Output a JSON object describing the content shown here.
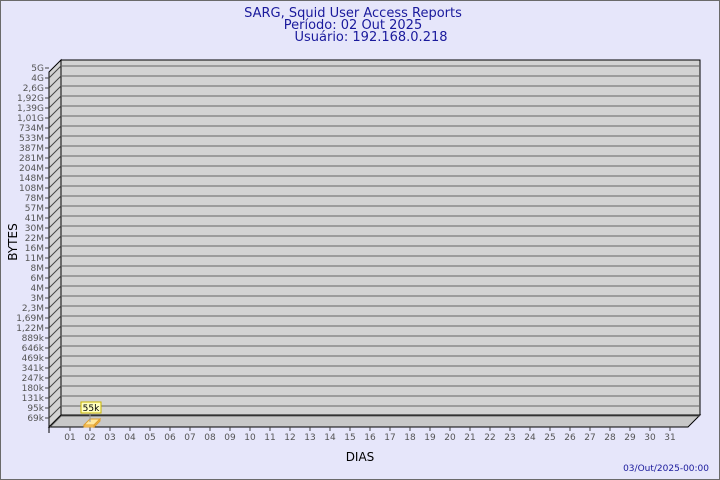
{
  "chart_data": {
    "type": "bar",
    "title": "SARG, Squid User Access Reports",
    "subtitle_lines": [
      "Período: 02 Out 2025",
      "Usuário: 192.168.0.218"
    ],
    "xlabel": "DIAS",
    "ylabel": "BYTES",
    "y_scale": "log",
    "grid": true,
    "categories": [
      "01",
      "02",
      "03",
      "04",
      "05",
      "06",
      "07",
      "08",
      "09",
      "10",
      "11",
      "12",
      "13",
      "14",
      "15",
      "16",
      "17",
      "18",
      "19",
      "20",
      "21",
      "22",
      "23",
      "24",
      "25",
      "26",
      "27",
      "28",
      "29",
      "30",
      "31"
    ],
    "values": [
      0,
      55000,
      0,
      0,
      0,
      0,
      0,
      0,
      0,
      0,
      0,
      0,
      0,
      0,
      0,
      0,
      0,
      0,
      0,
      0,
      0,
      0,
      0,
      0,
      0,
      0,
      0,
      0,
      0,
      0,
      0
    ],
    "data_labels": {
      "02": "55k"
    },
    "y_tick_labels": [
      "5G",
      "4G",
      "2,6G",
      "1,92G",
      "1,39G",
      "1,01G",
      "734M",
      "533M",
      "387M",
      "281M",
      "204M",
      "148M",
      "108M",
      "78M",
      "57M",
      "41M",
      "30M",
      "22M",
      "16M",
      "11M",
      "8M",
      "6M",
      "4M",
      "3M",
      "2,3M",
      "1,69M",
      "1,22M",
      "889k",
      "646k",
      "469k",
      "341k",
      "247k",
      "180k",
      "131k",
      "95k",
      "69k"
    ],
    "bar_color": "#ffd070",
    "wall_color": "#d3d3d3",
    "background_color": "#e6e6fa",
    "title_color": "#1a1a9c"
  },
  "footer": {
    "timestamp": "03/Out/2025-00:00"
  }
}
